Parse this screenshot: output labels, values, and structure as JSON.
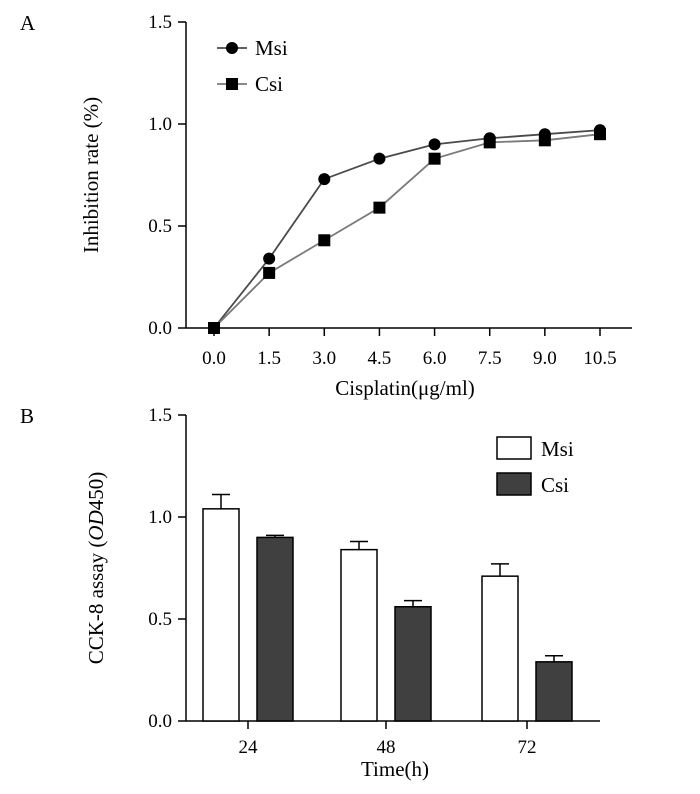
{
  "chart_data": [
    {
      "panel_label": "A",
      "type": "line",
      "title": "",
      "xlabel": "Cisplatin(μg/ml)",
      "ylabel": "Inhibition rate (%)",
      "categories": [
        "0.0",
        "1.5",
        "3.0",
        "4.5",
        "6.0",
        "7.5",
        "9.0",
        "10.5"
      ],
      "ylim": [
        0,
        1.5
      ],
      "yticks": [
        "0.0",
        "0.5",
        "1.0",
        "1.5"
      ],
      "ytick_values": [
        0,
        0.5,
        1.0,
        1.5
      ],
      "legend_position": "top-left",
      "grid": false,
      "series": [
        {
          "name": "Msi",
          "marker": "circle",
          "color": "#4a4a4a",
          "values": [
            0.0,
            0.34,
            0.73,
            0.83,
            0.9,
            0.93,
            0.95,
            0.97
          ]
        },
        {
          "name": "Csi",
          "marker": "square",
          "color": "#7a7a7a",
          "values": [
            0.0,
            0.27,
            0.43,
            0.59,
            0.83,
            0.91,
            0.92,
            0.95
          ]
        }
      ]
    },
    {
      "panel_label": "B",
      "type": "bar",
      "title": "",
      "xlabel": "Time(h)",
      "ylabel_prefix": "CCK-8 assay (",
      "ylabel_italic": "OD",
      "ylabel_suffix": "450)",
      "categories": [
        "24",
        "48",
        "72"
      ],
      "ylim": [
        0,
        1.5
      ],
      "yticks": [
        "0.0",
        "0.5",
        "1.0",
        "1.5"
      ],
      "ytick_values": [
        0,
        0.5,
        1.0,
        1.5
      ],
      "legend_position": "top-right",
      "grid": false,
      "series": [
        {
          "name": "Msi",
          "fill": "#ffffff",
          "values": [
            1.04,
            0.84,
            0.71
          ],
          "errors": [
            0.07,
            0.04,
            0.06
          ]
        },
        {
          "name": "Csi",
          "fill": "#404040",
          "values": [
            0.9,
            0.56,
            0.29
          ],
          "errors": [
            0.01,
            0.03,
            0.03
          ]
        }
      ]
    }
  ]
}
